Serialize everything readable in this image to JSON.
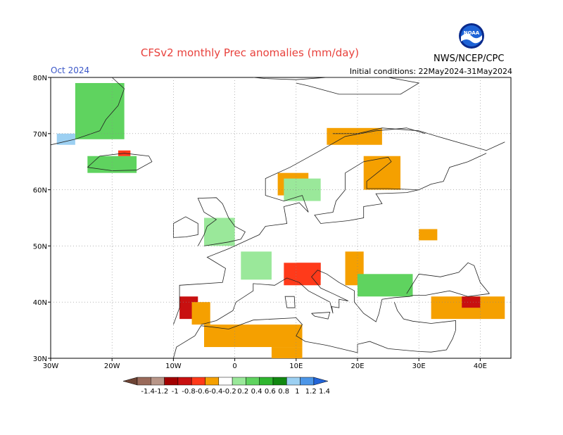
{
  "title": "CFSv2 monthly Prec anomalies (mm/day)",
  "month": "Oct 2024",
  "initial_conditions": "Initial conditions: 22May2024-31May2024",
  "agency": "NWS/NCEP/CPC",
  "logo_text": "NOAA",
  "lat_labels": [
    "80N",
    "70N",
    "60N",
    "50N",
    "40N",
    "30N"
  ],
  "lon_labels": [
    "30W",
    "20W",
    "10W",
    "0",
    "10E",
    "20E",
    "30E",
    "40E"
  ],
  "colorbar": {
    "labels": [
      "-1.4",
      "-1.2",
      "-1",
      "-0.8",
      "-0.6",
      "-0.4",
      "-0.2",
      "0.2",
      "0.4",
      "0.6",
      "0.8",
      "1",
      "1.2",
      "1.4"
    ],
    "colors": [
      "#6d4434",
      "#9a6a5a",
      "#b89688",
      "#a20000",
      "#c81010",
      "#ff3a1a",
      "#f5a000",
      "#ffffff",
      "#9ae89a",
      "#5fd35f",
      "#2fb62f",
      "#118811",
      "#9cd0f2",
      "#4c96e8",
      "#2264d8"
    ]
  },
  "colors": {
    "title": "#e8413c",
    "month": "#3b57c8",
    "dry": "#f5a000",
    "wet": "#5fd35f"
  },
  "chart_data": {
    "type": "heatmap",
    "variable": "monthly precipitation anomaly",
    "units": "mm/day",
    "lon_range": [
      -30,
      45
    ],
    "lat_range": [
      30,
      80
    ],
    "anomaly_regions": [
      {
        "lon": [
          -26,
          -18
        ],
        "lat": [
          69,
          79
        ],
        "value": 0.6
      },
      {
        "lon": [
          -29,
          -26
        ],
        "lat": [
          68,
          70
        ],
        "value": 1.2
      },
      {
        "lon": [
          -24,
          -16
        ],
        "lat": [
          63,
          66
        ],
        "value": 0.6
      },
      {
        "lon": [
          -19,
          -17
        ],
        "lat": [
          66,
          67
        ],
        "value": -0.4
      },
      {
        "lon": [
          15,
          24
        ],
        "lat": [
          68,
          71
        ],
        "value": -0.3
      },
      {
        "lon": [
          21,
          27
        ],
        "lat": [
          60,
          66
        ],
        "value": -0.3
      },
      {
        "lon": [
          7,
          12
        ],
        "lat": [
          59,
          63
        ],
        "value": -0.3
      },
      {
        "lon": [
          8,
          14
        ],
        "lat": [
          58,
          62
        ],
        "value": 0.4
      },
      {
        "lon": [
          -5,
          0
        ],
        "lat": [
          50,
          55
        ],
        "value": 0.4
      },
      {
        "lon": [
          1,
          6
        ],
        "lat": [
          44,
          49
        ],
        "value": 0.4
      },
      {
        "lon": [
          10,
          14
        ],
        "lat": [
          44,
          47
        ],
        "value": -0.7
      },
      {
        "lon": [
          8,
          14
        ],
        "lat": [
          43,
          47
        ],
        "value": -0.4
      },
      {
        "lon": [
          18,
          21
        ],
        "lat": [
          43,
          49
        ],
        "value": -0.3
      },
      {
        "lon": [
          20,
          29
        ],
        "lat": [
          41,
          45
        ],
        "value": 0.6
      },
      {
        "lon": [
          30,
          33
        ],
        "lat": [
          51,
          53
        ],
        "value": -0.3
      },
      {
        "lon": [
          -9,
          -6
        ],
        "lat": [
          37,
          41
        ],
        "value": -0.7
      },
      {
        "lon": [
          -7,
          -4
        ],
        "lat": [
          36,
          40
        ],
        "value": -0.3
      },
      {
        "lon": [
          -5,
          11
        ],
        "lat": [
          32,
          36
        ],
        "value": -0.3
      },
      {
        "lon": [
          6,
          11
        ],
        "lat": [
          30,
          32
        ],
        "value": -0.3
      },
      {
        "lon": [
          32,
          44
        ],
        "lat": [
          37,
          41
        ],
        "value": -0.3
      },
      {
        "lon": [
          37,
          40
        ],
        "lat": [
          39,
          41
        ],
        "value": -0.6
      }
    ]
  }
}
